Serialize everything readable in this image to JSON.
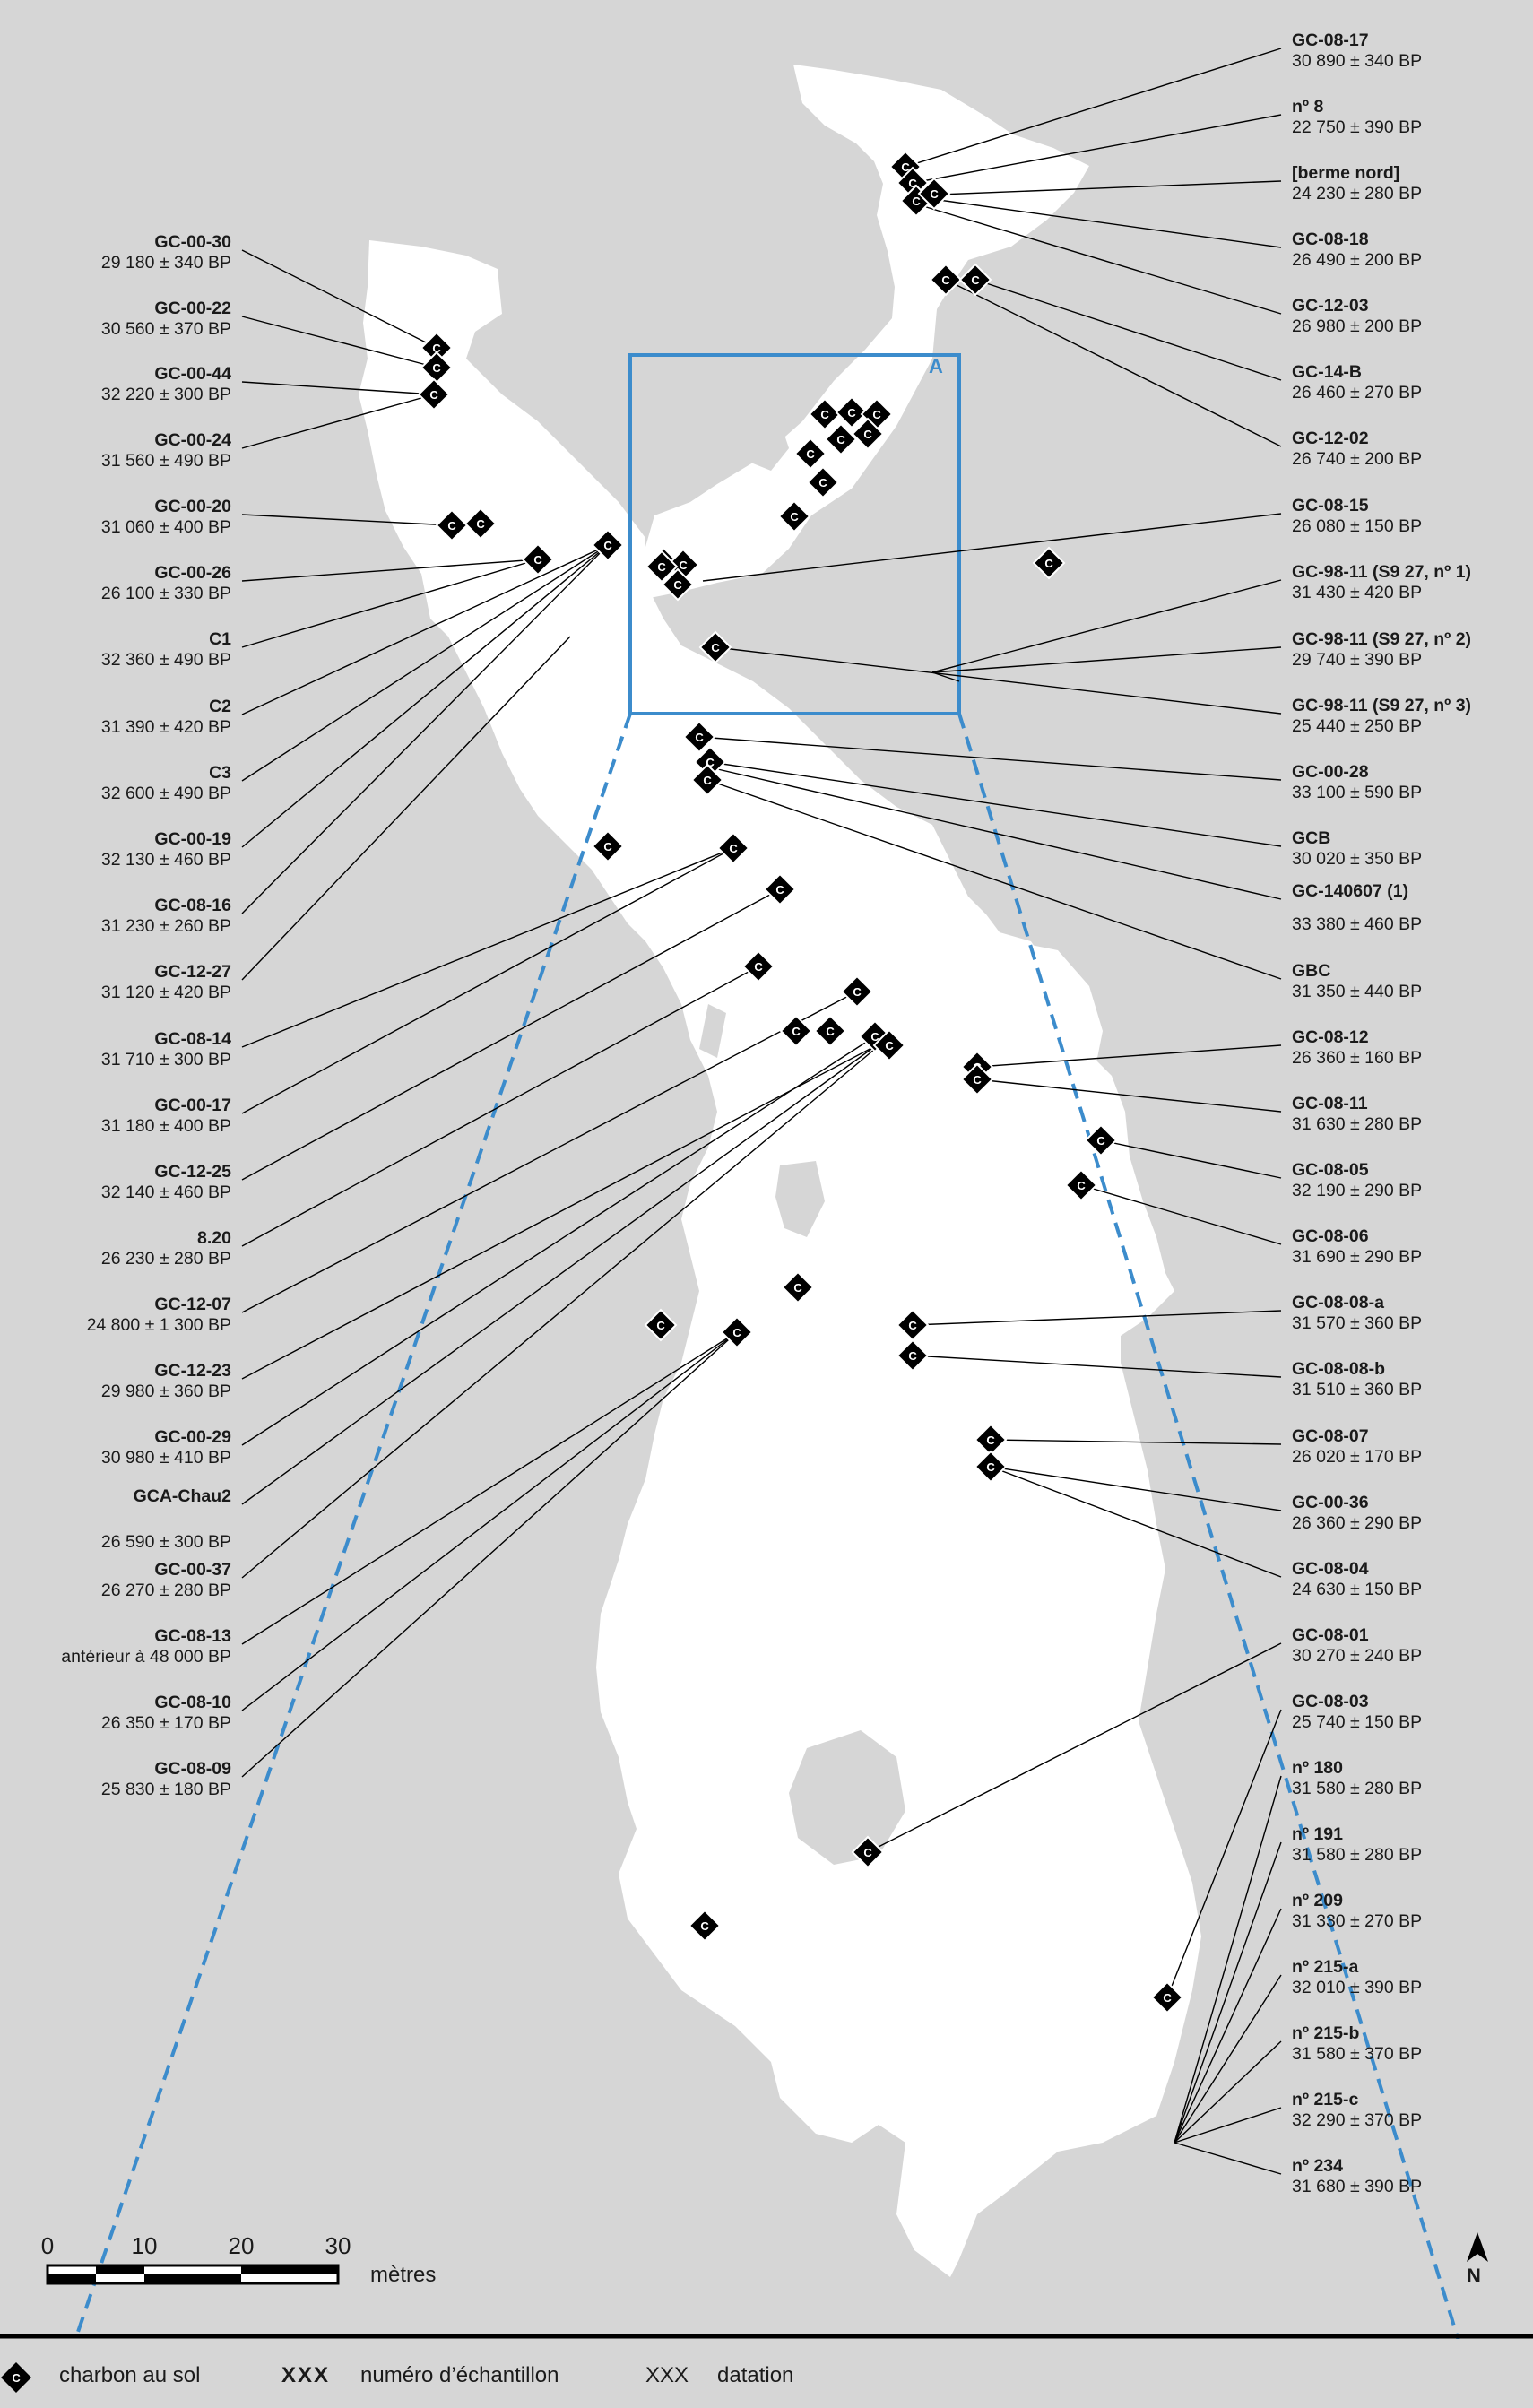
{
  "zone_label": "A",
  "scale": {
    "ticks": [
      "0",
      "10",
      "20",
      "30"
    ],
    "unit": "mètres"
  },
  "north_label": "N",
  "sample_marker_letter": "C",
  "legend": {
    "marker_text": "charbon au sol",
    "sample_code": "XXX",
    "sample_text": "numéro d’échantillon",
    "date_code": "XXX",
    "date_text": "datation"
  },
  "colors": {
    "background": "#d6d6d6",
    "cave": "#ffffff",
    "zoom": "#3c8ccc",
    "marker": "#000000"
  },
  "left_labels": [
    {
      "id": "GC-00-30",
      "date": "29 180 ± 340 BP"
    },
    {
      "id": "GC-00-22",
      "date": "30 560 ± 370 BP"
    },
    {
      "id": "GC-00-44",
      "date": "32 220 ± 300 BP"
    },
    {
      "id": "GC-00-24",
      "date": "31 560 ± 490 BP"
    },
    {
      "id": "GC-00-20",
      "date": "31 060 ± 400 BP"
    },
    {
      "id": "GC-00-26",
      "date": "26 100 ± 330 BP"
    },
    {
      "id": "C1",
      "date": "32 360 ± 490 BP"
    },
    {
      "id": "C2",
      "date": "31 390 ± 420 BP"
    },
    {
      "id": "C3",
      "date": "32 600 ± 490 BP"
    },
    {
      "id": "GC-00-19",
      "date": "32 130 ± 460 BP"
    },
    {
      "id": "GC-08-16",
      "date": "31 230 ± 260 BP"
    },
    {
      "id": "GC-12-27",
      "date": "31 120 ± 420 BP"
    },
    {
      "id": "GC-08-14",
      "date": "31 710 ± 300 BP"
    },
    {
      "id": "GC-00-17",
      "date": "31 180 ± 400 BP"
    },
    {
      "id": "GC-12-25",
      "date": "32 140 ± 460 BP"
    },
    {
      "id": "8.20",
      "date": "26 230 ± 280 BP"
    },
    {
      "id": "GC-12-07",
      "date": "24 800 ± 1 300 BP"
    },
    {
      "id": "GC-12-23",
      "date": "29 980 ± 360 BP"
    },
    {
      "id": "GC-00-29",
      "date": "30 980 ± 410 BP"
    },
    {
      "id": "GCA-Chau2",
      "date": "26 590 ± 300 BP"
    },
    {
      "id": "GC-00-37",
      "date": "26 270 ± 280 BP"
    },
    {
      "id": "GC-08-13",
      "date": "antérieur à 48 000 BP"
    },
    {
      "id": "GC-08-10",
      "date": "26 350 ± 170 BP"
    },
    {
      "id": "GC-08-09",
      "date": "25 830 ± 180 BP"
    }
  ],
  "right_labels": [
    {
      "id": "GC-08-17",
      "date": "30 890 ± 340 BP"
    },
    {
      "id": "nº 8",
      "date": "22 750 ± 390 BP"
    },
    {
      "id": "[berme nord]",
      "date": "24 230 ± 280 BP"
    },
    {
      "id": "GC-08-18",
      "date": "26 490 ± 200 BP"
    },
    {
      "id": "GC-12-03",
      "date": "26 980 ± 200 BP"
    },
    {
      "id": "GC-14-B",
      "date": "26 460 ± 270 BP"
    },
    {
      "id": "GC-12-02",
      "date": "26 740 ± 200 BP"
    },
    {
      "id": "GC-08-15",
      "date": "26 080 ± 150 BP"
    },
    {
      "id": "GC-98-11 (S9 27, nº 1)",
      "date": "31 430 ± 420 BP"
    },
    {
      "id": "GC-98-11 (S9 27, nº 2)",
      "date": "29 740 ± 390 BP"
    },
    {
      "id": "GC-98-11 (S9 27, nº 3)",
      "date": "25 440 ± 250 BP"
    },
    {
      "id": "GC-00-28",
      "date": "33 100 ± 590 BP"
    },
    {
      "id": "GCB",
      "date": "30 020 ± 350 BP"
    },
    {
      "id": "GC-140607 (1)",
      "date": "33 380 ± 460 BP"
    },
    {
      "id": "GBC",
      "date": "31 350 ± 440 BP"
    },
    {
      "id": "GC-08-12",
      "date": "26 360 ± 160 BP"
    },
    {
      "id": "GC-08-11",
      "date": "31 630 ± 280 BP"
    },
    {
      "id": "GC-08-05",
      "date": "32 190 ± 290 BP"
    },
    {
      "id": "GC-08-06",
      "date": "31 690 ± 290 BP"
    },
    {
      "id": "GC-08-08-a",
      "date": "31 570 ± 360 BP"
    },
    {
      "id": "GC-08-08-b",
      "date": "31 510 ± 360 BP"
    },
    {
      "id": "GC-08-07",
      "date": "26 020 ± 170 BP"
    },
    {
      "id": "GC-00-36",
      "date": "26 360 ± 290 BP"
    },
    {
      "id": "GC-08-04",
      "date": "24 630 ± 150 BP"
    },
    {
      "id": "GC-08-01",
      "date": "30 270 ± 240 BP"
    },
    {
      "id": "GC-08-03",
      "date": "25 740 ± 150 BP"
    },
    {
      "id": "nº 180",
      "date": "31 580 ± 280 BP"
    },
    {
      "id": "nº 191",
      "date": "31 580 ± 280 BP"
    },
    {
      "id": "nº 209",
      "date": "31 330 ± 270 BP"
    },
    {
      "id": "nº 215-a",
      "date": "32 010 ± 390 BP"
    },
    {
      "id": "nº 215-b",
      "date": "31 580 ± 370 BP"
    },
    {
      "id": "nº 215-c",
      "date": "32 290 ± 370 BP"
    },
    {
      "id": "nº 234",
      "date": "31 680 ± 390 BP"
    }
  ]
}
